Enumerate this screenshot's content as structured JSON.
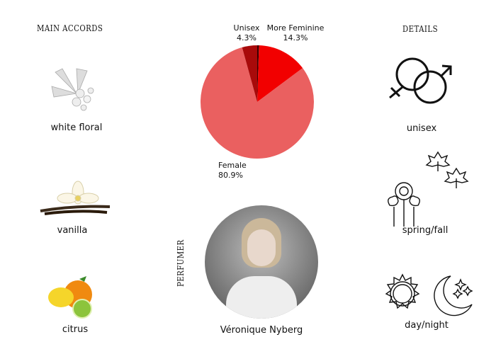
{
  "accords": {
    "title": "MAIN ACCORDS",
    "items": [
      {
        "label": "white floral",
        "icon": "white-floral-icon"
      },
      {
        "label": "vanilla",
        "icon": "vanilla-icon"
      },
      {
        "label": "citrus",
        "icon": "citrus-icon"
      }
    ]
  },
  "chart_data": {
    "type": "pie",
    "slices": [
      {
        "name": "",
        "value": 0.5,
        "color": "#3a0000"
      },
      {
        "name": "More Feminine",
        "value": 14.3,
        "label": "14.3%",
        "color": "#f20000"
      },
      {
        "name": "Female",
        "value": 80.9,
        "label": "80.9%",
        "color": "#ea6060"
      },
      {
        "name": "Unisex",
        "value": 4.3,
        "label": "4.3%",
        "color": "#a80a0a"
      }
    ]
  },
  "perfumer": {
    "title": "PERFUMER",
    "name": "Véronique Nyberg"
  },
  "details": {
    "title": "DETAILS",
    "items": [
      {
        "label": "unisex",
        "icon": "gender-icon"
      },
      {
        "label": "spring/fall",
        "icon": "season-icon"
      },
      {
        "label": "day/night",
        "icon": "day-night-icon"
      }
    ]
  }
}
